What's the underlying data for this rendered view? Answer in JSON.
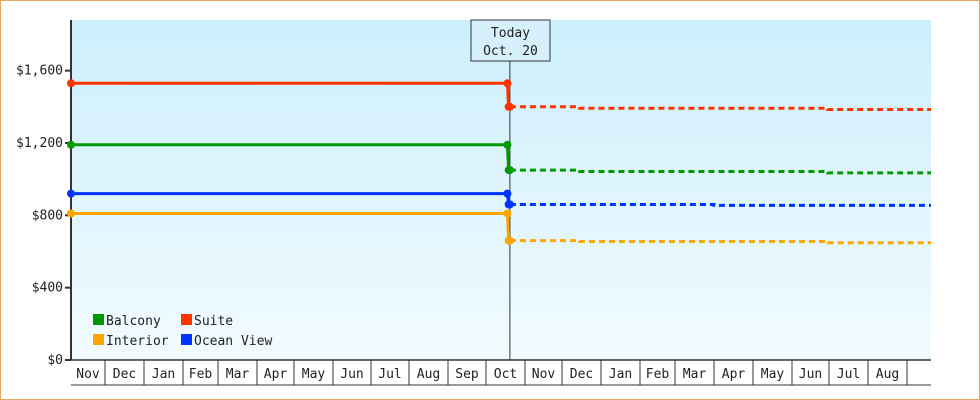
{
  "chart_data": {
    "type": "line",
    "title": "",
    "xlabel": "",
    "ylabel": "",
    "ylim": [
      0,
      1880
    ],
    "grid": false,
    "legend_position": "bottom-left",
    "y_ticks": [
      "$0",
      "$400",
      "$800",
      "$1,200",
      "$1,600"
    ],
    "y_tick_values": [
      0,
      400,
      800,
      1200,
      1600
    ],
    "x_ticks": [
      "Nov",
      "Dec",
      "Jan",
      "Feb",
      "Mar",
      "Apr",
      "May",
      "Jun",
      "Jul",
      "Aug",
      "Sep",
      "Oct",
      "Nov",
      "Dec",
      "Jan",
      "Feb",
      "Mar",
      "Apr",
      "May",
      "Jun",
      "Jul",
      "Aug"
    ],
    "today_marker": {
      "line1": "Today",
      "line2": "Oct. 20",
      "date": "Oct 20"
    },
    "series": [
      {
        "name": "Balcony",
        "color": "#009900",
        "history": [
          [
            "Nov 1",
            1190
          ],
          [
            "Oct 18",
            1190
          ],
          [
            "Oct 19",
            1050
          ],
          [
            "Oct 20",
            1050
          ]
        ],
        "forecast": [
          [
            "Oct 20",
            1050
          ],
          [
            "Dec 15",
            1050
          ],
          [
            "Dec 15",
            1042
          ],
          [
            "Jun 30",
            1042
          ],
          [
            "Jun 30",
            1035
          ],
          [
            "Aug 31",
            1035
          ]
        ]
      },
      {
        "name": "Suite",
        "color": "#ff3300",
        "history": [
          [
            "Nov 1",
            1530
          ],
          [
            "Oct 18",
            1530
          ],
          [
            "Oct 19",
            1400
          ],
          [
            "Oct 20",
            1400
          ]
        ],
        "forecast": [
          [
            "Oct 20",
            1400
          ],
          [
            "Dec 15",
            1400
          ],
          [
            "Dec 15",
            1392
          ],
          [
            "Jun 30",
            1392
          ],
          [
            "Jun 30",
            1385
          ],
          [
            "Aug 31",
            1385
          ]
        ]
      },
      {
        "name": "Interior",
        "color": "#ffa500",
        "history": [
          [
            "Nov 1",
            810
          ],
          [
            "Oct 18",
            810
          ],
          [
            "Oct 19",
            660
          ],
          [
            "Oct 20",
            660
          ]
        ],
        "forecast": [
          [
            "Oct 20",
            660
          ],
          [
            "Dec 15",
            660
          ],
          [
            "Dec 15",
            655
          ],
          [
            "Jun 30",
            655
          ],
          [
            "Jun 30",
            648
          ],
          [
            "Aug 31",
            648
          ]
        ]
      },
      {
        "name": "Ocean View",
        "color": "#0033ff",
        "history": [
          [
            "Nov 1",
            920
          ],
          [
            "Oct 18",
            920
          ],
          [
            "Oct 19",
            860
          ],
          [
            "Oct 20",
            860
          ]
        ],
        "forecast": [
          [
            "Oct 20",
            860
          ],
          [
            "Apr 1",
            860
          ],
          [
            "Apr 1",
            855
          ],
          [
            "Aug 31",
            855
          ]
        ]
      }
    ]
  }
}
